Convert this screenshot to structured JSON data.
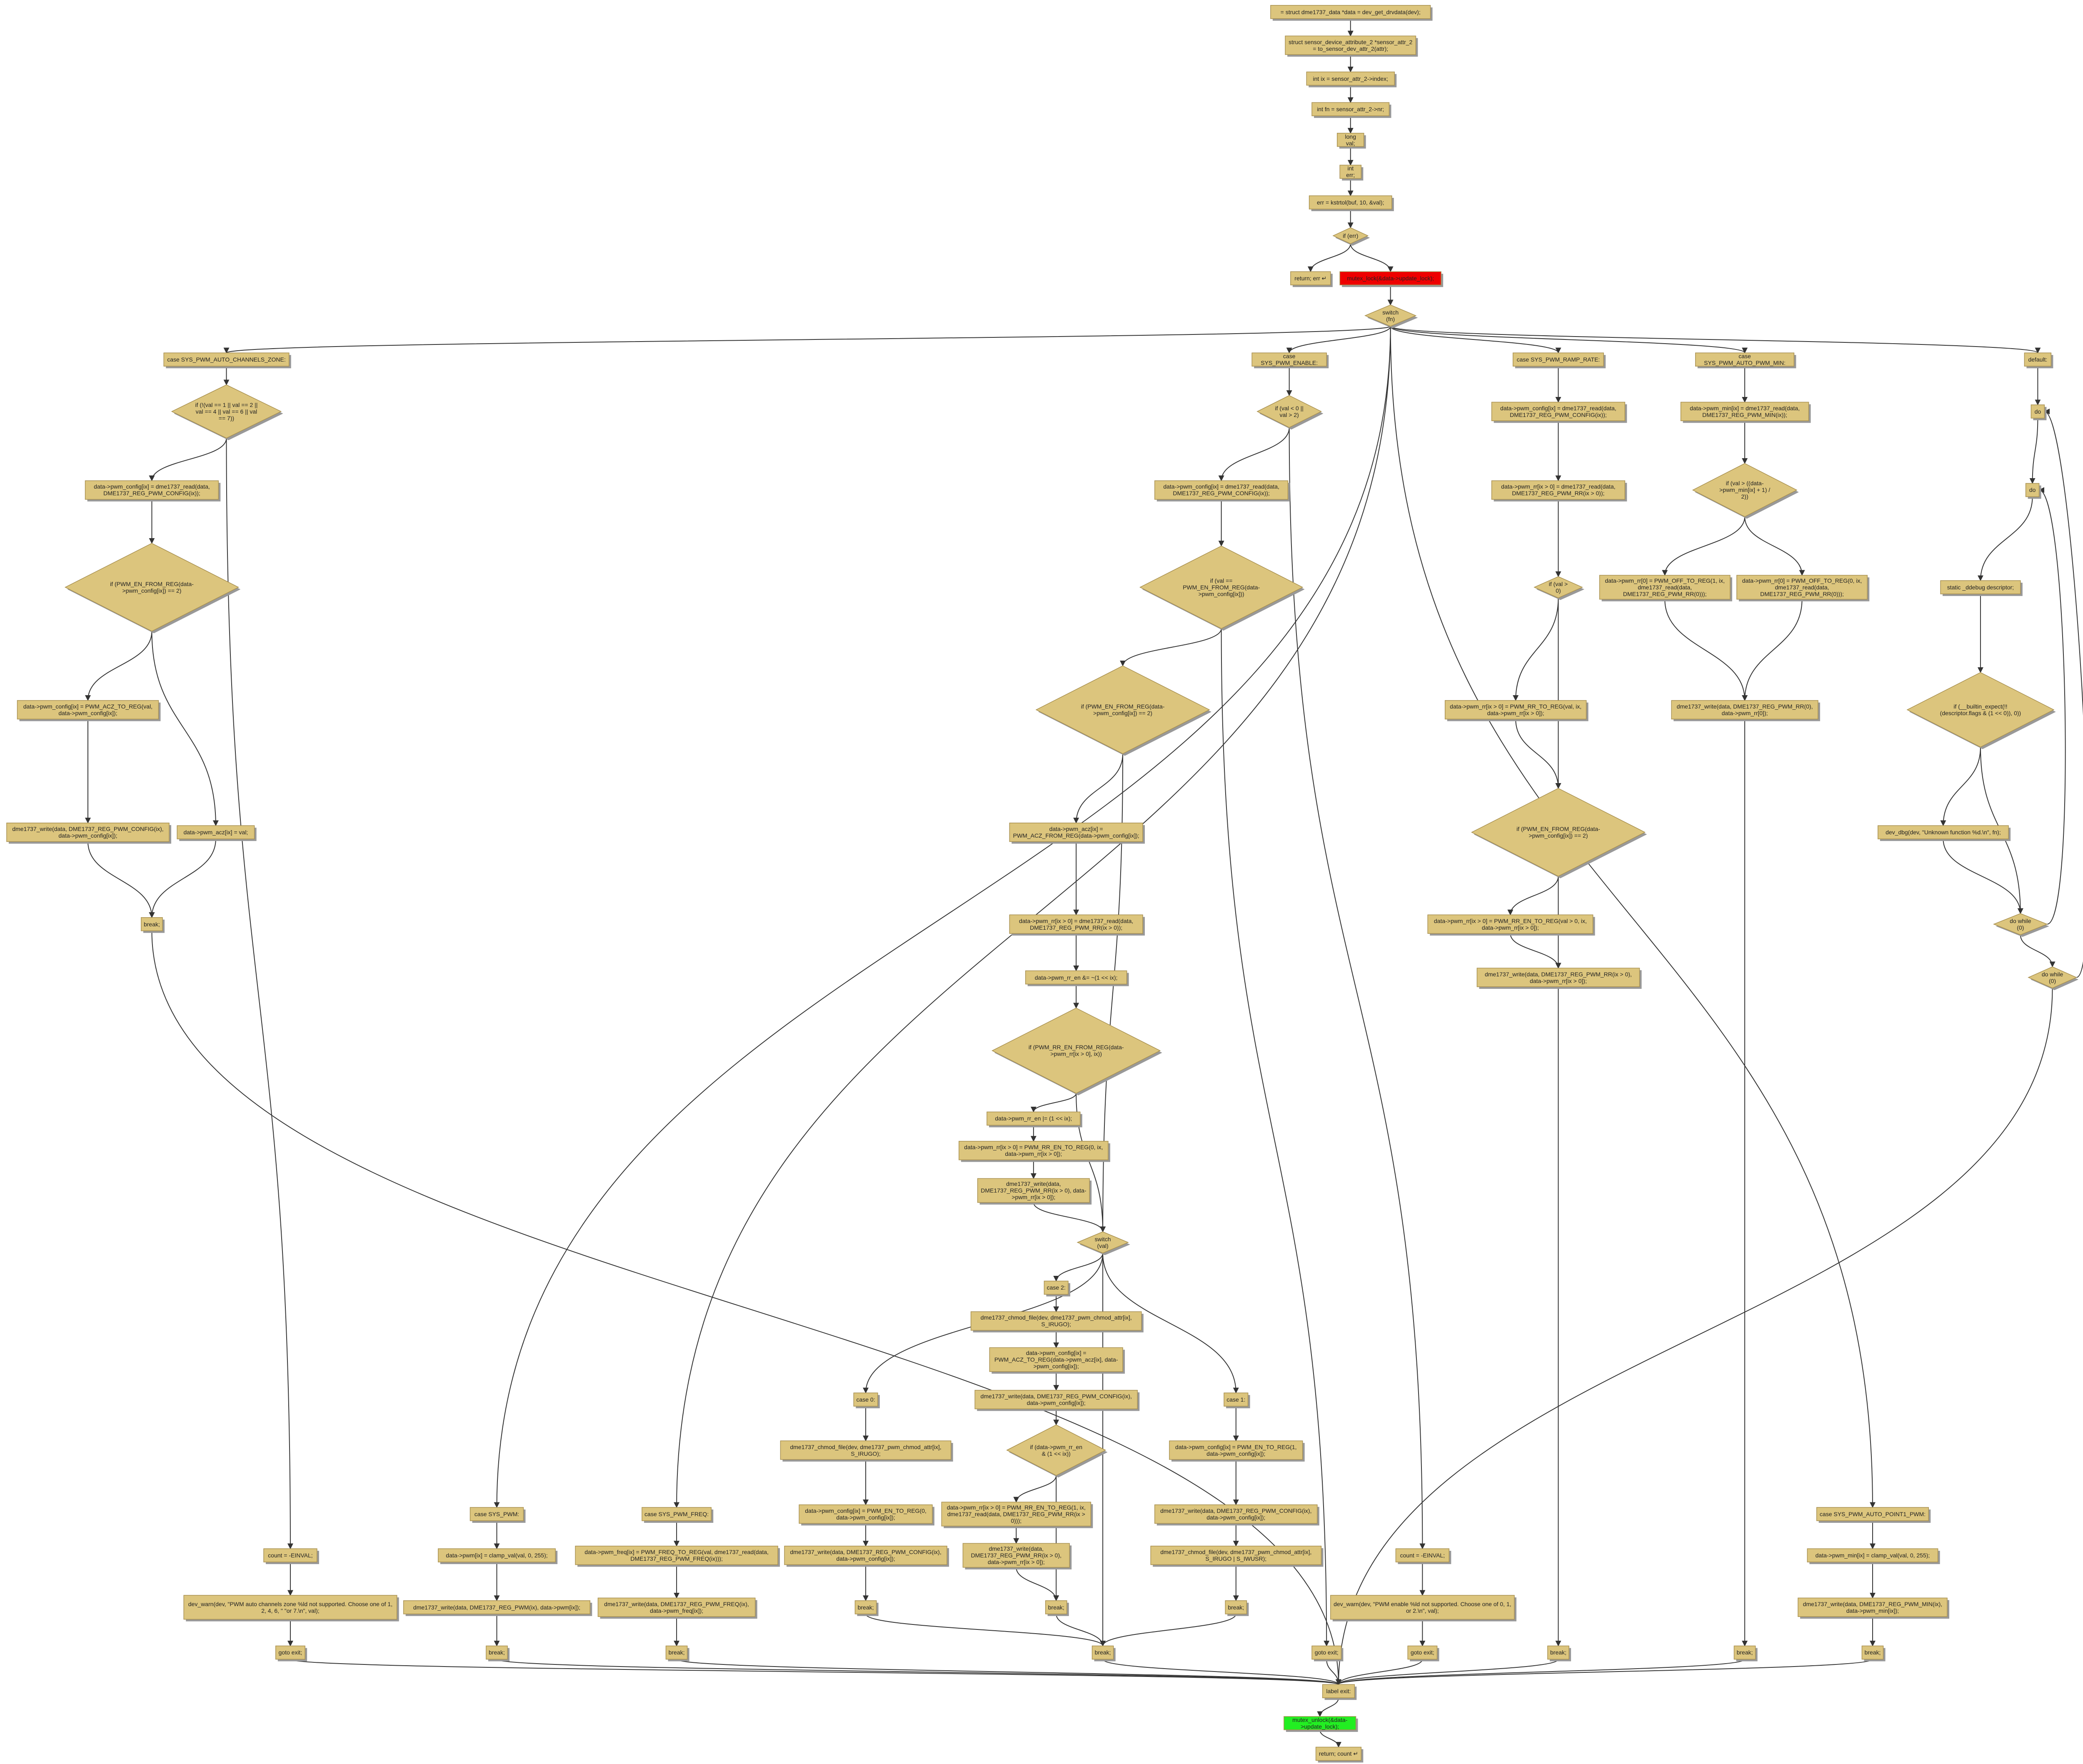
{
  "nodes": [
    {
      "label": "= struct dme1737_data *data = dev_get_drvdata(dev);"
    },
    {
      "label": "struct sensor_device_attribute_2 *sensor_attr_2 = to_sensor_dev_attr_2(attr);"
    },
    {
      "label": "int ix = sensor_attr_2->index;"
    },
    {
      "label": "int fn = sensor_attr_2->nr;"
    },
    {
      "label": "long val;"
    },
    {
      "label": "int err;"
    },
    {
      "label": "err = kstrtol(buf, 10, &val);"
    },
    {
      "label": "if (err)"
    },
    {
      "label": "return; err ↵"
    },
    {
      "label": "mutex_lock(&data->update_lock);"
    },
    {
      "label": "switch (fn)"
    },
    {
      "label": "case SYS_PWM_AUTO_CHANNELS_ZONE:"
    },
    {
      "label": "if (!(val == 1 || val == 2 || val == 4 || val == 6 || val == 7))"
    },
    {
      "label": "data->pwm_config[ix] = dme1737_read(data, DME1737_REG_PWM_CONFIG(ix));"
    },
    {
      "label": "if (PWM_EN_FROM_REG(data->pwm_config[ix]) == 2)"
    },
    {
      "label": "data->pwm_config[ix] = PWM_ACZ_TO_REG(val, data->pwm_config[ix]);"
    },
    {
      "label": "dme1737_write(data, DME1737_REG_PWM_CONFIG(ix), data->pwm_config[ix]);"
    },
    {
      "label": "data->pwm_acz[ix] = val;"
    },
    {
      "label": "break;"
    },
    {
      "label": "count = -EINVAL;"
    },
    {
      "label": "dev_warn(dev, \"PWM auto channels zone %ld not supported. Choose one of 1, 2, 4, 6, \" \"or 7.\\n\", val);"
    },
    {
      "label": "goto exit;"
    },
    {
      "label": "case SYS_PWM:"
    },
    {
      "label": "data->pwm[ix] = clamp_val(val, 0, 255);"
    },
    {
      "label": "dme1737_write(data, DME1737_REG_PWM(ix), data->pwm[ix]);"
    },
    {
      "label": "break;"
    },
    {
      "label": "case SYS_PWM_FREQ:"
    },
    {
      "label": "data->pwm_freq[ix] = PWM_FREQ_TO_REG(val, dme1737_read(data, DME1737_REG_PWM_FREQ(ix)));"
    },
    {
      "label": "dme1737_write(data, DME1737_REG_PWM_FREQ(ix), data->pwm_freq[ix]);"
    },
    {
      "label": "break;"
    },
    {
      "label": "case SYS_PWM_ENABLE:"
    },
    {
      "label": "if (val < 0 || val > 2)"
    },
    {
      "label": "data->pwm_config[ix] = dme1737_read(data, DME1737_REG_PWM_CONFIG(ix));"
    },
    {
      "label": "if (val == PWM_EN_FROM_REG(data->pwm_config[ix]))"
    },
    {
      "label": "if (PWM_EN_FROM_REG(data->pwm_config[ix]) == 2)"
    },
    {
      "label": "data->pwm_acz[ix] = PWM_ACZ_FROM_REG(data->pwm_config[ix]);"
    },
    {
      "label": "data->pwm_rr[ix > 0] = dme1737_read(data, DME1737_REG_PWM_RR(ix > 0));"
    },
    {
      "label": "data->pwm_rr_en &= ~(1 << ix);"
    },
    {
      "label": "if (PWM_RR_EN_FROM_REG(data->pwm_rr[ix > 0], ix))"
    },
    {
      "label": "data->pwm_rr_en |= (1 << ix);"
    },
    {
      "label": "data->pwm_rr[ix > 0] = PWM_RR_EN_TO_REG(0, ix, data->pwm_rr[ix > 0]);"
    },
    {
      "label": "dme1737_write(data, DME1737_REG_PWM_RR(ix > 0), data->pwm_rr[ix > 0]);"
    },
    {
      "label": "switch (val)"
    },
    {
      "label": "case 2:"
    },
    {
      "label": "dme1737_chmod_file(dev, dme1737_pwm_chmod_attr[ix], S_IRUGO);"
    },
    {
      "label": "data->pwm_config[ix] = PWM_ACZ_TO_REG(data->pwm_acz[ix], data->pwm_config[ix]);"
    },
    {
      "label": "dme1737_write(data, DME1737_REG_PWM_CONFIG(ix), data->pwm_config[ix]);"
    },
    {
      "label": "if (data->pwm_rr_en & (1 << ix))"
    },
    {
      "label": "data->pwm_rr[ix > 0] = PWM_RR_EN_TO_REG(1, ix, dme1737_read(data, DME1737_REG_PWM_RR(ix > 0)));"
    },
    {
      "label": "dme1737_write(data, DME1737_REG_PWM_RR(ix > 0), data->pwm_rr[ix > 0]);"
    },
    {
      "label": "break;"
    },
    {
      "label": "case 0:"
    },
    {
      "label": "dme1737_chmod_file(dev, dme1737_pwm_chmod_attr[ix], S_IRUGO);"
    },
    {
      "label": "data->pwm_config[ix] = PWM_EN_TO_REG(0, data->pwm_config[ix]);"
    },
    {
      "label": "dme1737_write(data, DME1737_REG_PWM_CONFIG(ix), data->pwm_config[ix]);"
    },
    {
      "label": "break;"
    },
    {
      "label": "case 1:"
    },
    {
      "label": "data->pwm_config[ix] = PWM_EN_TO_REG(1, data->pwm_config[ix]);"
    },
    {
      "label": "dme1737_write(data, DME1737_REG_PWM_CONFIG(ix), data->pwm_config[ix]);"
    },
    {
      "label": "dme1737_chmod_file(dev, dme1737_pwm_chmod_attr[ix], S_IRUGO | S_IWUSR);"
    },
    {
      "label": "break;"
    },
    {
      "label": "break;"
    },
    {
      "label": "goto exit;"
    },
    {
      "label": "count = -EINVAL;"
    },
    {
      "label": "dev_warn(dev, \"PWM enable %ld not supported. Choose one of 0, 1, or 2.\\n\", val);"
    },
    {
      "label": "goto exit;"
    },
    {
      "label": "case SYS_PWM_RAMP_RATE:"
    },
    {
      "label": "data->pwm_config[ix] = dme1737_read(data, DME1737_REG_PWM_CONFIG(ix));"
    },
    {
      "label": "data->pwm_rr[ix > 0] = dme1737_read(data, DME1737_REG_PWM_RR(ix > 0));"
    },
    {
      "label": "if (val > 0)"
    },
    {
      "label": "data->pwm_rr[ix > 0] = PWM_RR_TO_REG(val, ix, data->pwm_rr[ix > 0]);"
    },
    {
      "label": "if (PWM_EN_FROM_REG(data->pwm_config[ix]) == 2)"
    },
    {
      "label": "data->pwm_rr[ix > 0] = PWM_RR_EN_TO_REG(val > 0, ix, data->pwm_rr[ix > 0]);"
    },
    {
      "label": "dme1737_write(data, DME1737_REG_PWM_RR(ix > 0), data->pwm_rr[ix > 0]);"
    },
    {
      "label": "break;"
    },
    {
      "label": "case SYS_PWM_AUTO_PWM_MIN:"
    },
    {
      "label": "data->pwm_min[ix] = dme1737_read(data, DME1737_REG_PWM_MIN(ix));"
    },
    {
      "label": "if (val > ((data->pwm_min[ix] + 1) / 2))"
    },
    {
      "label": "data->pwm_rr[0] = PWM_OFF_TO_REG(1, ix, dme1737_read(data, DME1737_REG_PWM_RR(0)));"
    },
    {
      "label": "data->pwm_rr[0] = PWM_OFF_TO_REG(0, ix, dme1737_read(data, DME1737_REG_PWM_RR(0)));"
    },
    {
      "label": "dme1737_write(data, DME1737_REG_PWM_RR(0), data->pwm_rr[0]);"
    },
    {
      "label": "break;"
    },
    {
      "label": "case SYS_PWM_AUTO_POINT1_PWM:"
    },
    {
      "label": "data->pwm_min[ix] = clamp_val(val, 0, 255);"
    },
    {
      "label": "dme1737_write(data, DME1737_REG_PWM_MIN(ix), data->pwm_min[ix]);"
    },
    {
      "label": "break;"
    },
    {
      "label": "default:"
    },
    {
      "label": "do"
    },
    {
      "label": "do"
    },
    {
      "label": "static _ddebug descriptor;"
    },
    {
      "label": "if (__builtin_expect(!!(descriptor.flags & (1 << 0)), 0))"
    },
    {
      "label": "dev_dbg(dev, \"Unknown function %d.\\n\", fn);"
    },
    {
      "label": "do while (0)"
    },
    {
      "label": "do while (0)"
    },
    {
      "label": "label exit:"
    },
    {
      "label": "mutex_unlock(&data->update_lock);"
    },
    {
      "label": "return; count ↵"
    }
  ]
}
